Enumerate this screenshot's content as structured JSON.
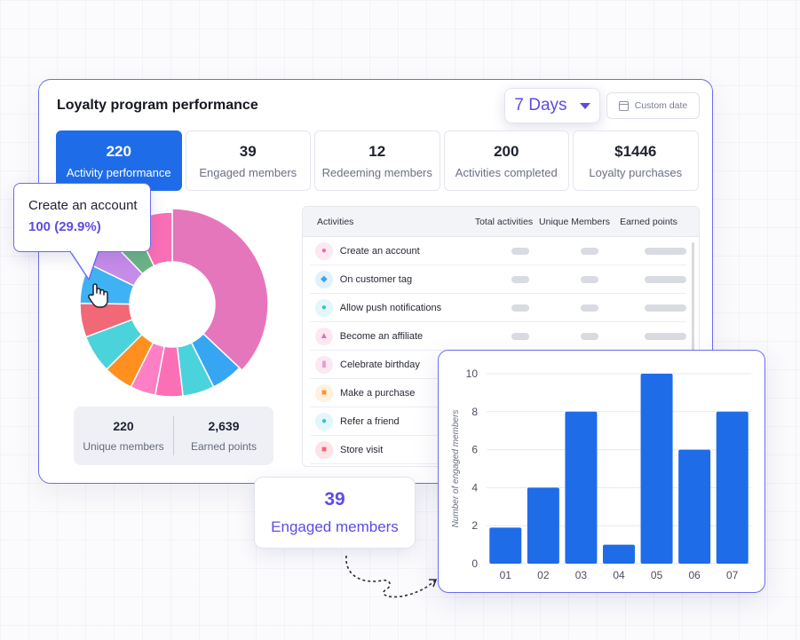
{
  "header": {
    "title": "Loyalty program performance",
    "days_select": "7 Days",
    "custom_date": "Custom date"
  },
  "stats": [
    {
      "value": "220",
      "label": "Activity performance",
      "active": true
    },
    {
      "value": "39",
      "label": "Engaged members",
      "active": false
    },
    {
      "value": "12",
      "label": "Redeeming members",
      "active": false
    },
    {
      "value": "200",
      "label": "Activities completed",
      "active": false
    },
    {
      "value": "$1446",
      "label": "Loyalty purchases",
      "active": false
    }
  ],
  "tooltip": {
    "title": "Create an account",
    "value": "100 (29.9%)"
  },
  "donut": {
    "segments": [
      {
        "value": 100,
        "color": "#e676bc"
      },
      {
        "value": 15,
        "color": "#36a6f3"
      },
      {
        "value": 15,
        "color": "#4bd3dc"
      },
      {
        "value": 13,
        "color": "#fb6fb6"
      },
      {
        "value": 12,
        "color": "#ff7fc4"
      },
      {
        "value": 14,
        "color": "#ff8f1f"
      },
      {
        "value": 18,
        "color": "#4bd3dc"
      },
      {
        "value": 16,
        "color": "#f16876"
      },
      {
        "value": 19,
        "color": "#3fb2f4"
      },
      {
        "value": 15,
        "color": "#c68ce9"
      },
      {
        "value": 14,
        "color": "#6bb585"
      },
      {
        "value": 19,
        "color": "#fb6fb6"
      }
    ]
  },
  "summary": {
    "unique_members_value": "220",
    "unique_members_label": "Unique members",
    "earned_points_value": "2,639",
    "earned_points_label": "Earned points"
  },
  "table": {
    "headers": {
      "activities": "Activities",
      "total": "Total activities",
      "unique": "Unique Members",
      "points": "Earned points"
    },
    "rows": [
      {
        "name": "Create an account",
        "icon": "person-icon",
        "glyph": "●",
        "bg": "#fde7f2",
        "fg": "#f069b0"
      },
      {
        "name": "On customer tag",
        "icon": "tag-icon",
        "glyph": "◆",
        "bg": "#e3f1fd",
        "fg": "#3fa2f0"
      },
      {
        "name": "Allow push notifications",
        "icon": "people-icon",
        "glyph": "●",
        "bg": "#e2f7f8",
        "fg": "#35c3cf"
      },
      {
        "name": "Become an affiliate",
        "icon": "network-icon",
        "glyph": "▲",
        "bg": "#fde7f2",
        "fg": "#f069b0"
      },
      {
        "name": "Celebrate birthday",
        "icon": "cake-icon",
        "glyph": "▮",
        "bg": "#fbe8f3",
        "fg": "#e49ad0"
      },
      {
        "name": "Make a purchase",
        "icon": "cart-icon",
        "glyph": "■",
        "bg": "#fff0e0",
        "fg": "#ff9323"
      },
      {
        "name": "Refer a friend",
        "icon": "user-add-icon",
        "glyph": "●",
        "bg": "#e2f7f8",
        "fg": "#35c3cf"
      },
      {
        "name": "Store visit",
        "icon": "store-icon",
        "glyph": "■",
        "bg": "#fde3e6",
        "fg": "#f06676"
      }
    ]
  },
  "engaged_badge": {
    "value": "39",
    "label": "Engaged members"
  },
  "chart_data": {
    "type": "bar",
    "categories": [
      "01",
      "02",
      "03",
      "04",
      "05",
      "06",
      "07"
    ],
    "values": [
      1.9,
      4,
      8,
      1,
      10,
      6,
      8
    ],
    "ylabel": "Number of engaged members",
    "ylim": [
      0,
      10
    ],
    "yticks": [
      0,
      2,
      4,
      6,
      8,
      10
    ],
    "grid": true,
    "color": "#1e6ce8"
  }
}
